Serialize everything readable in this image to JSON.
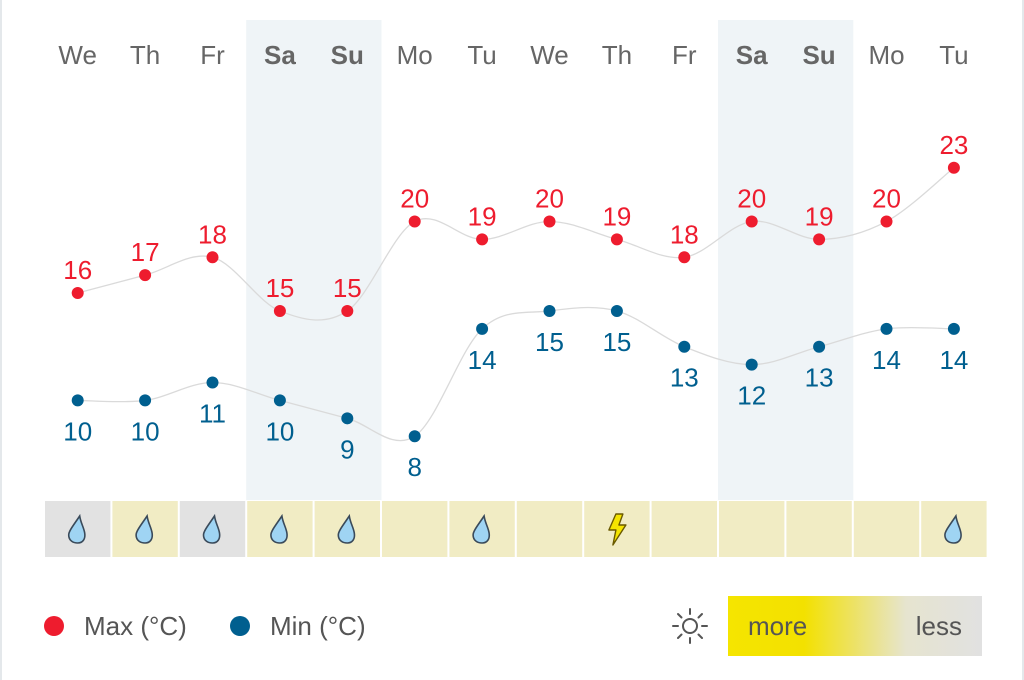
{
  "chart_data": {
    "type": "line",
    "categories": [
      "We",
      "Th",
      "Fr",
      "Sa",
      "Su",
      "Mo",
      "Tu",
      "We",
      "Th",
      "Fr",
      "Sa",
      "Su",
      "Mo",
      "Tu"
    ],
    "weekend": [
      false,
      false,
      false,
      true,
      true,
      false,
      false,
      false,
      false,
      false,
      true,
      true,
      false,
      false
    ],
    "series": [
      {
        "name": "Max (°C)",
        "color": "#ee1c2e",
        "values": [
          16,
          17,
          18,
          15,
          15,
          20,
          19,
          20,
          19,
          18,
          20,
          19,
          20,
          23
        ]
      },
      {
        "name": "Min (°C)",
        "color": "#005f8f",
        "values": [
          10,
          10,
          11,
          10,
          9,
          8,
          14,
          15,
          15,
          13,
          12,
          13,
          14,
          14
        ]
      }
    ],
    "precipitation": [
      {
        "icon": "rain-icon",
        "sun": "low"
      },
      {
        "icon": "rain-icon",
        "sun": "high"
      },
      {
        "icon": "rain-icon",
        "sun": "low"
      },
      {
        "icon": "rain-icon",
        "sun": "high"
      },
      {
        "icon": "rain-icon",
        "sun": "high"
      },
      {
        "icon": "",
        "sun": "high"
      },
      {
        "icon": "rain-icon",
        "sun": "high"
      },
      {
        "icon": "",
        "sun": "high"
      },
      {
        "icon": "thunder-icon",
        "sun": "high"
      },
      {
        "icon": "",
        "sun": "high"
      },
      {
        "icon": "",
        "sun": "high"
      },
      {
        "icon": "",
        "sun": "high"
      },
      {
        "icon": "",
        "sun": "high"
      },
      {
        "icon": "rain-icon",
        "sun": "high"
      }
    ],
    "ylim": [
      6,
      25
    ],
    "colors": {
      "weekend_band": "#eff4f7",
      "sun_high": "#f1ecc4",
      "sun_low": "#e2e2e2",
      "rain": "#9fd4f3",
      "thunder": "#f5e500"
    }
  },
  "legend": {
    "max_label": "Max (°C)",
    "min_label": "Min (°C)"
  },
  "sunshine": {
    "icon": "sun-icon",
    "more_label": "more",
    "less_label": "less"
  }
}
